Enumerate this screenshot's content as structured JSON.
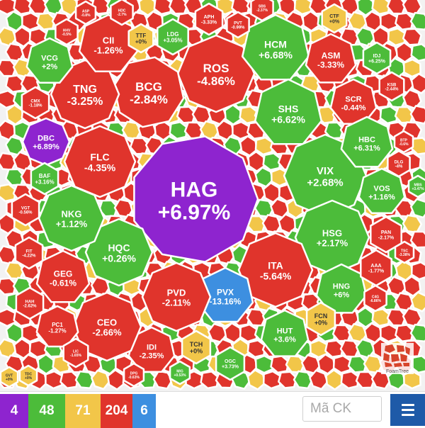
{
  "colors": {
    "purple": "#8e24cf",
    "green": "#4cbc3a",
    "yellow": "#f2c649",
    "red": "#e0342c",
    "blue": "#3d8fe0",
    "gap": "#f2f2f2",
    "menu": "#1e5aa8"
  },
  "stocks": [
    {
      "ticker": "HAG",
      "change": "+6.97%",
      "color": "purple"
    },
    {
      "ticker": "ROS",
      "change": "-4.86%",
      "color": "red"
    },
    {
      "ticker": "BCG",
      "change": "-2.84%",
      "color": "red"
    },
    {
      "ticker": "TNG",
      "change": "-3.25%",
      "color": "red"
    },
    {
      "ticker": "CII",
      "change": "-1.26%",
      "color": "red"
    },
    {
      "ticker": "TTF",
      "change": "+0%",
      "color": "yellow"
    },
    {
      "ticker": "LDG",
      "change": "+3.05%",
      "color": "green"
    },
    {
      "ticker": "HCM",
      "change": "+6.68%",
      "color": "green"
    },
    {
      "ticker": "ASM",
      "change": "-3.33%",
      "color": "red"
    },
    {
      "ticker": "SHS",
      "change": "+6.62%",
      "color": "green"
    },
    {
      "ticker": "SCR",
      "change": "-0.44%",
      "color": "red"
    },
    {
      "ticker": "VIX",
      "change": "+2.68%",
      "color": "green"
    },
    {
      "ticker": "HBC",
      "change": "+6.31%",
      "color": "green"
    },
    {
      "ticker": "VOS",
      "change": "+1.16%",
      "color": "green"
    },
    {
      "ticker": "HSG",
      "change": "+2.17%",
      "color": "green"
    },
    {
      "ticker": "ITA",
      "change": "-5.64%",
      "color": "red"
    },
    {
      "ticker": "HNG",
      "change": "+6%",
      "color": "green"
    },
    {
      "ticker": "PVX",
      "change": "-13.16%",
      "color": "blue"
    },
    {
      "ticker": "HUT",
      "change": "+3.6%",
      "color": "green"
    },
    {
      "ticker": "FCN",
      "change": "+0%",
      "color": "yellow"
    },
    {
      "ticker": "PVD",
      "change": "-2.11%",
      "color": "red"
    },
    {
      "ticker": "TCH",
      "change": "+0%",
      "color": "yellow"
    },
    {
      "ticker": "IDI",
      "change": "-2.35%",
      "color": "red"
    },
    {
      "ticker": "CEO",
      "change": "-2.66%",
      "color": "red"
    },
    {
      "ticker": "HQC",
      "change": "+0.26%",
      "color": "green"
    },
    {
      "ticker": "GEG",
      "change": "-0.61%",
      "color": "red"
    },
    {
      "ticker": "NKG",
      "change": "+1.12%",
      "color": "green"
    },
    {
      "ticker": "FLC",
      "change": "-4.35%",
      "color": "red"
    },
    {
      "ticker": "DBC",
      "change": "+6.89%",
      "color": "purple"
    },
    {
      "ticker": "VCG",
      "change": "+2%",
      "color": "green"
    },
    {
      "ticker": "BAF",
      "change": "+3.16%",
      "color": "green"
    },
    {
      "ticker": "OGC",
      "change": "+3.73%",
      "color": "green"
    },
    {
      "ticker": "CTF",
      "change": "+0%",
      "color": "yellow"
    },
    {
      "ticker": "IDJ",
      "change": "+6.25%",
      "color": "green"
    },
    {
      "ticker": "PC1",
      "change": "-1.27%",
      "color": "red"
    },
    {
      "ticker": "PAN",
      "change": "-2.17%",
      "color": "red"
    },
    {
      "ticker": "AAA",
      "change": "-1.77%",
      "color": "red"
    },
    {
      "ticker": "APH",
      "change": "-3.33%",
      "color": "red"
    },
    {
      "ticker": "PVT",
      "change": "-0.99%",
      "color": "red"
    },
    {
      "ticker": "DLG",
      "change": "-4%",
      "color": "red"
    },
    {
      "ticker": "KSB",
      "change": "-2.44%",
      "color": "red"
    },
    {
      "ticker": "CMX",
      "change": "-1.18%",
      "color": "red"
    },
    {
      "ticker": "VGT",
      "change": "-0.56%",
      "color": "red"
    },
    {
      "ticker": "FIT",
      "change": "-4.22%",
      "color": "red"
    },
    {
      "ticker": "HAH",
      "change": "-2.62%",
      "color": "red"
    },
    {
      "ticker": "LIC",
      "change": "-1.65%",
      "color": "red"
    },
    {
      "ticker": "MBS",
      "change": "+3.47%",
      "color": "green"
    },
    {
      "ticker": "TSC",
      "change": "-3.38%",
      "color": "red"
    },
    {
      "ticker": "C4G",
      "change": "-6.86%",
      "color": "red"
    },
    {
      "ticker": "BTP",
      "change": "-0.6%",
      "color": "red"
    },
    {
      "ticker": "HDC",
      "change": "-2.7%",
      "color": "red"
    },
    {
      "ticker": "SBS",
      "change": "-2.37%",
      "color": "red"
    },
    {
      "ticker": "ASP",
      "change": "-0.8%",
      "color": "red"
    },
    {
      "ticker": "HHV",
      "change": "-0.5%",
      "color": "red"
    },
    {
      "ticker": "MIG",
      "change": "+0.53%",
      "color": "green"
    },
    {
      "ticker": "GVT",
      "change": "+0%",
      "color": "yellow"
    },
    {
      "ticker": "DPG",
      "change": "-0.63%",
      "color": "red"
    },
    {
      "ticker": "TDC",
      "change": "+0%",
      "color": "yellow"
    }
  ],
  "counts": [
    {
      "value": "4",
      "color": "purple"
    },
    {
      "value": "48",
      "color": "green"
    },
    {
      "value": "71",
      "color": "yellow"
    },
    {
      "value": "204",
      "color": "red"
    },
    {
      "value": "6",
      "color": "blue"
    }
  ],
  "search": {
    "placeholder": "Mã CK"
  },
  "logo": {
    "label": "FoamTree"
  }
}
